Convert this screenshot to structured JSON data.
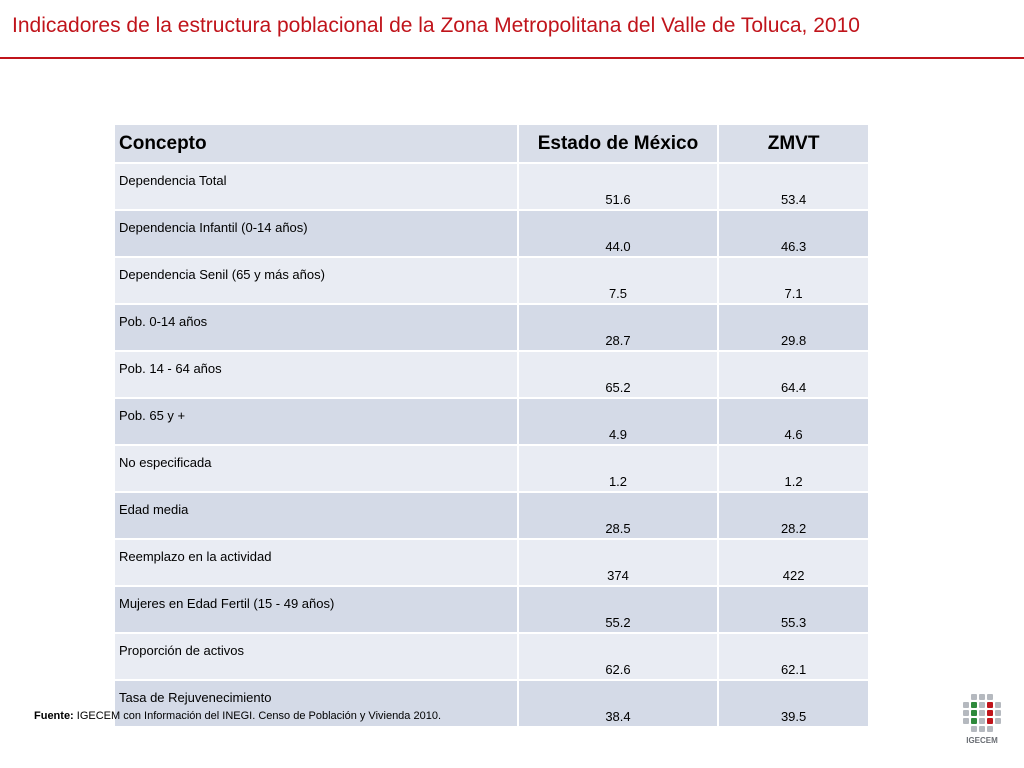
{
  "title": "Indicadores de la estructura poblacional de la Zona Metropolitana del Valle de Toluca, 2010",
  "table": {
    "headers": [
      "Concepto",
      "Estado de México",
      "ZMVT"
    ],
    "rows": [
      {
        "concepto": "Dependencia Total",
        "estado": "51.6",
        "zmvt": "53.4"
      },
      {
        "concepto": "Dependencia Infantil (0-14 años)",
        "estado": "44.0",
        "zmvt": "46.3"
      },
      {
        "concepto": "Dependencia Senil (65 y más años)",
        "estado": "7.5",
        "zmvt": "7.1"
      },
      {
        "concepto": "Pob. 0-14 años",
        "estado": "28.7",
        "zmvt": "29.8"
      },
      {
        "concepto": "Pob. 14 - 64 años",
        "estado": "65.2",
        "zmvt": "64.4"
      },
      {
        "concepto": "Pob. 65 y +",
        "estado": "4.9",
        "zmvt": "4.6"
      },
      {
        "concepto": "No especificada",
        "estado": "1.2",
        "zmvt": "1.2"
      },
      {
        "concepto": "Edad media",
        "estado": "28.5",
        "zmvt": "28.2"
      },
      {
        "concepto": "Reemplazo en la actividad",
        "estado": "374",
        "zmvt": "422"
      },
      {
        "concepto": "Mujeres en Edad Fertil (15 - 49 años)",
        "estado": "55.2",
        "zmvt": "55.3"
      },
      {
        "concepto": "Proporción de activos",
        "estado": "62.6",
        "zmvt": "62.1"
      },
      {
        "concepto": "Tasa de Rejuvenecimiento",
        "estado": "38.4",
        "zmvt": "39.5"
      }
    ]
  },
  "footer": {
    "label": "Fuente:",
    "text": " IGECEM con Información del INEGI. Censo de Población y Vivienda 2010."
  },
  "logo": {
    "text": "IGECEM",
    "colors": {
      "gray": "#b5b9bf",
      "green": "#2f8a3c",
      "red": "#c0141b"
    }
  },
  "colors": {
    "title": "#c0141b",
    "header_bg": "#d9dee9",
    "row_light": "#e9ecf3",
    "row_dark": "#d4dae7"
  }
}
